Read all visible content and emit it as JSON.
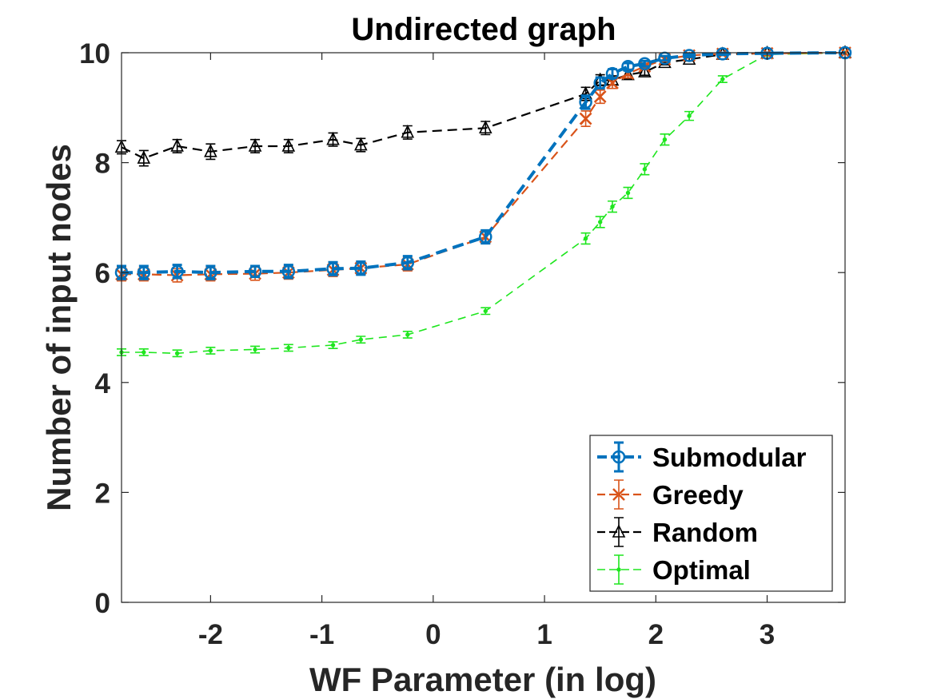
{
  "chart_data": {
    "type": "line",
    "title": "Undirected graph",
    "xlabel": "WF Parameter (in log)",
    "ylabel": "Number of input nodes",
    "xlim": [
      -2.8,
      3.7
    ],
    "ylim": [
      0,
      10
    ],
    "xticks": [
      -2,
      -1,
      0,
      1,
      2,
      3
    ],
    "yticks": [
      0,
      2,
      4,
      6,
      8,
      10
    ],
    "xtick_labels": [
      "-2",
      "-1",
      "0",
      "1",
      "2",
      "3"
    ],
    "ytick_labels": [
      "0",
      "2",
      "4",
      "6",
      "8",
      "10"
    ],
    "grid": false,
    "legend_position": "bottom-right",
    "x": [
      -2.8,
      -2.6,
      -2.3,
      -2.0,
      -1.6,
      -1.3,
      -0.9,
      -0.65,
      -0.23,
      0.47,
      1.37,
      1.5,
      1.61,
      1.75,
      1.9,
      2.08,
      2.3,
      2.6,
      3.0,
      3.7
    ],
    "series": [
      {
        "name": "Submodular",
        "color": "#0072BD",
        "marker": "circle",
        "line": "dashed-thick",
        "values": [
          6.0,
          6.0,
          6.02,
          6.0,
          6.02,
          6.02,
          6.07,
          6.08,
          6.18,
          6.65,
          9.1,
          9.45,
          9.62,
          9.75,
          9.8,
          9.9,
          9.95,
          9.98,
          9.99,
          10.0
        ],
        "errors": [
          0.12,
          0.12,
          0.12,
          0.12,
          0.1,
          0.12,
          0.12,
          0.12,
          0.12,
          0.12,
          0.12,
          0.1,
          0.08,
          0.06,
          0.05,
          0.04,
          0.03,
          0.02,
          0.01,
          0.0
        ]
      },
      {
        "name": "Greedy",
        "color": "#D95319",
        "marker": "x",
        "line": "dashed",
        "values": [
          5.97,
          5.97,
          5.95,
          5.97,
          5.98,
          6.0,
          6.05,
          6.08,
          6.15,
          6.65,
          8.8,
          9.2,
          9.45,
          9.62,
          9.75,
          9.88,
          9.95,
          9.98,
          9.99,
          10.0
        ],
        "errors": [
          0.12,
          0.12,
          0.12,
          0.12,
          0.12,
          0.12,
          0.12,
          0.12,
          0.12,
          0.12,
          0.14,
          0.12,
          0.1,
          0.08,
          0.06,
          0.04,
          0.03,
          0.02,
          0.01,
          0.0
        ]
      },
      {
        "name": "Random",
        "color": "#000000",
        "marker": "triangle",
        "line": "dashed",
        "values": [
          8.28,
          8.08,
          8.3,
          8.2,
          8.3,
          8.3,
          8.42,
          8.32,
          8.55,
          8.63,
          9.25,
          9.5,
          9.5,
          9.6,
          9.65,
          9.82,
          9.88,
          9.97,
          9.99,
          10.0
        ],
        "errors": [
          0.12,
          0.14,
          0.12,
          0.14,
          0.12,
          0.12,
          0.12,
          0.12,
          0.12,
          0.12,
          0.12,
          0.1,
          0.08,
          0.07,
          0.06,
          0.04,
          0.03,
          0.02,
          0.01,
          0.0
        ]
      },
      {
        "name": "Optimal",
        "color": "#1EE61E",
        "marker": "dot",
        "line": "dashed-thin",
        "values": [
          4.55,
          4.55,
          4.53,
          4.58,
          4.6,
          4.63,
          4.68,
          4.78,
          4.87,
          5.3,
          6.62,
          6.92,
          7.2,
          7.45,
          7.88,
          8.42,
          8.85,
          9.52,
          9.97,
          10.0
        ],
        "errors": [
          0.06,
          0.06,
          0.06,
          0.06,
          0.06,
          0.06,
          0.06,
          0.06,
          0.06,
          0.06,
          0.1,
          0.1,
          0.1,
          0.1,
          0.1,
          0.1,
          0.08,
          0.06,
          0.03,
          0.0
        ]
      }
    ]
  }
}
